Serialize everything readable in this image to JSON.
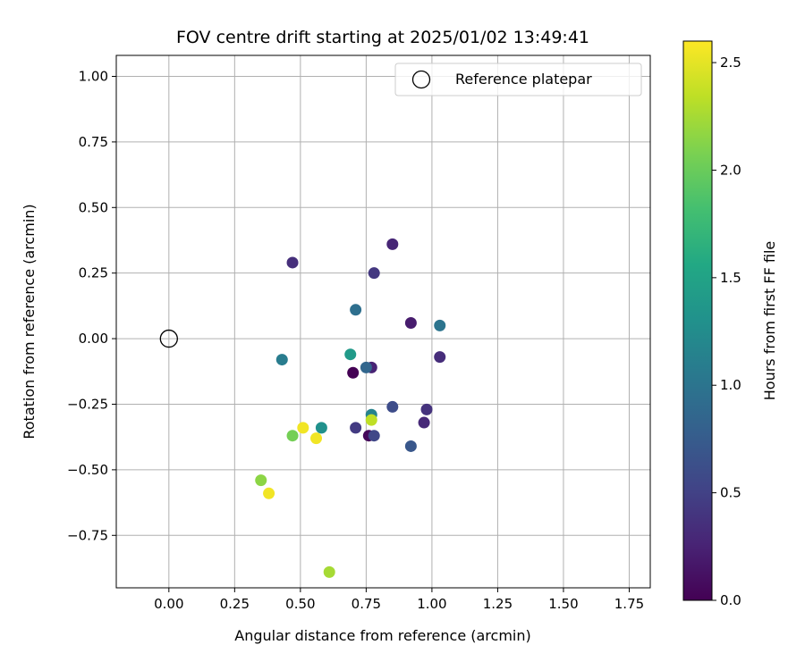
{
  "chart_data": {
    "type": "scatter",
    "title": "FOV centre drift starting at 2025/01/02 13:49:41",
    "xlabel": "Angular distance from reference (arcmin)",
    "ylabel": "Rotation from reference (arcmin)",
    "xlim": [
      -0.2,
      1.83
    ],
    "ylim": [
      -0.95,
      1.08
    ],
    "x_ticks": [
      0.0,
      0.25,
      0.5,
      0.75,
      1.0,
      1.25,
      1.5,
      1.75
    ],
    "x_tick_labels": [
      "0.00",
      "0.25",
      "0.50",
      "0.75",
      "1.00",
      "1.25",
      "1.50",
      "1.75"
    ],
    "y_ticks": [
      -0.75,
      -0.5,
      -0.25,
      0.0,
      0.25,
      0.5,
      0.75,
      1.0
    ],
    "y_tick_labels": [
      "−0.75",
      "−0.50",
      "−0.25",
      "0.00",
      "0.25",
      "0.50",
      "0.75",
      "1.00"
    ],
    "grid": true,
    "legend": {
      "placement": "upper right",
      "entries": [
        {
          "label": "Reference platepar",
          "marker": "hollow-circle",
          "color": "#000000"
        }
      ]
    },
    "reference_point": {
      "x": 0.0,
      "y": 0.0
    },
    "colorbar": {
      "label": "Hours from first FF file",
      "colormap": "viridis",
      "range": [
        0.0,
        2.6
      ],
      "ticks": [
        0.0,
        0.5,
        1.0,
        1.5,
        2.0,
        2.5
      ],
      "tick_labels": [
        "0.0",
        "0.5",
        "1.0",
        "1.5",
        "2.0",
        "2.5"
      ]
    },
    "points": [
      {
        "x": 0.7,
        "y": -0.13,
        "hours": 0.0
      },
      {
        "x": 0.76,
        "y": -0.37,
        "hours": 0.05
      },
      {
        "x": 0.92,
        "y": 0.06,
        "hours": 0.2
      },
      {
        "x": 0.77,
        "y": -0.11,
        "hours": 0.25
      },
      {
        "x": 0.85,
        "y": 0.36,
        "hours": 0.28
      },
      {
        "x": 0.97,
        "y": -0.32,
        "hours": 0.3
      },
      {
        "x": 1.03,
        "y": -0.07,
        "hours": 0.33
      },
      {
        "x": 0.47,
        "y": 0.29,
        "hours": 0.35
      },
      {
        "x": 0.98,
        "y": -0.27,
        "hours": 0.38
      },
      {
        "x": 0.78,
        "y": 0.25,
        "hours": 0.42
      },
      {
        "x": 0.71,
        "y": -0.34,
        "hours": 0.45
      },
      {
        "x": 0.78,
        "y": -0.37,
        "hours": 0.55
      },
      {
        "x": 0.85,
        "y": -0.26,
        "hours": 0.6
      },
      {
        "x": 0.92,
        "y": -0.41,
        "hours": 0.7
      },
      {
        "x": 0.75,
        "y": -0.11,
        "hours": 0.85
      },
      {
        "x": 0.71,
        "y": 0.11,
        "hours": 0.95
      },
      {
        "x": 1.03,
        "y": 0.05,
        "hours": 1.0
      },
      {
        "x": 0.43,
        "y": -0.08,
        "hours": 1.08
      },
      {
        "x": 0.77,
        "y": -0.29,
        "hours": 1.15
      },
      {
        "x": 0.58,
        "y": -0.34,
        "hours": 1.3
      },
      {
        "x": 0.69,
        "y": -0.06,
        "hours": 1.4
      },
      {
        "x": 0.47,
        "y": -0.37,
        "hours": 2.05
      },
      {
        "x": 0.35,
        "y": -0.54,
        "hours": 2.15
      },
      {
        "x": 0.61,
        "y": -0.89,
        "hours": 2.25
      },
      {
        "x": 0.77,
        "y": -0.31,
        "hours": 2.35
      },
      {
        "x": 0.51,
        "y": -0.34,
        "hours": 2.55
      },
      {
        "x": 0.56,
        "y": -0.38,
        "hours": 2.55
      },
      {
        "x": 0.38,
        "y": -0.59,
        "hours": 2.55
      }
    ]
  }
}
